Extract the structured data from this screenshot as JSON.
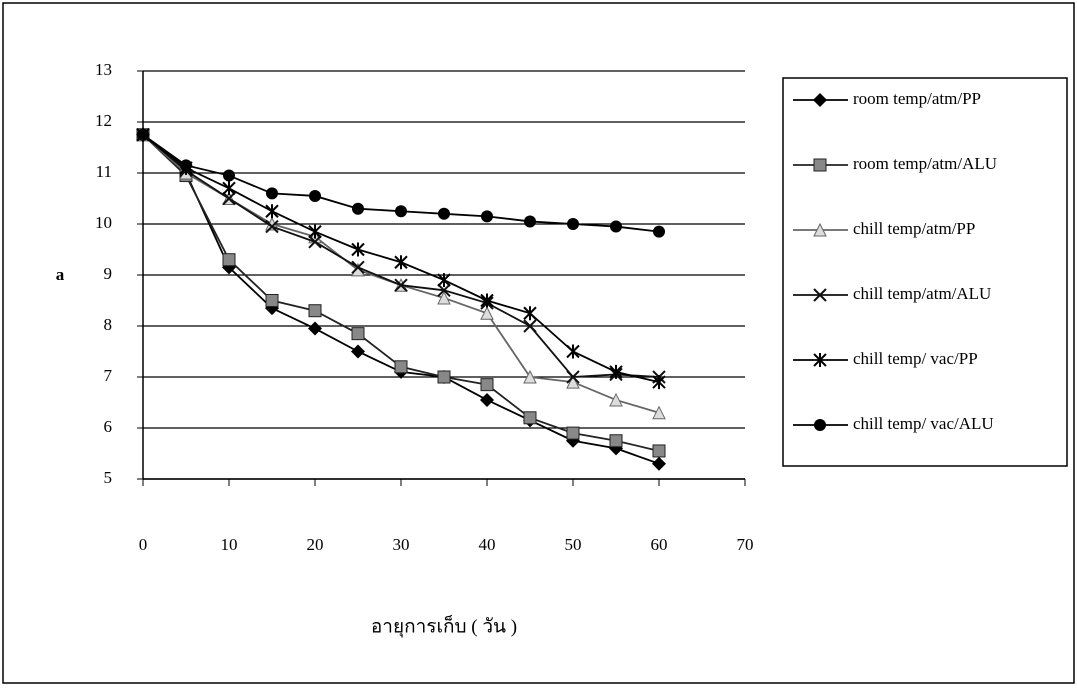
{
  "chart_data": {
    "type": "line",
    "x_label": "อายุการเก็บ ( วัน )",
    "y_label": "a",
    "x": [
      0,
      5,
      10,
      15,
      20,
      25,
      30,
      35,
      40,
      45,
      50,
      55,
      60
    ],
    "xlim": [
      0,
      70
    ],
    "xticks": [
      0,
      10,
      20,
      30,
      40,
      50,
      60,
      70
    ],
    "ylim": [
      5,
      13
    ],
    "yticks": [
      5,
      6,
      7,
      8,
      9,
      10,
      11,
      12,
      13
    ],
    "grid": true,
    "legend": "right",
    "series": [
      {
        "name": "room temp/atm/PP",
        "color": "#000000",
        "marker": "diamond",
        "values": [
          11.75,
          11.0,
          9.15,
          8.35,
          7.95,
          7.5,
          7.1,
          7.0,
          6.55,
          6.15,
          5.75,
          5.6,
          5.3
        ]
      },
      {
        "name": "room temp/atm/ALU",
        "color": "#222222",
        "marker": "square",
        "values": [
          11.75,
          10.95,
          9.3,
          8.5,
          8.3,
          7.85,
          7.2,
          7.0,
          6.85,
          6.2,
          5.9,
          5.75,
          5.55
        ]
      },
      {
        "name": "chill temp/atm/PP",
        "color": "#666666",
        "marker": "triangle",
        "values": [
          11.75,
          11.0,
          10.5,
          10.0,
          9.75,
          9.1,
          8.8,
          8.55,
          8.25,
          7.0,
          6.9,
          6.55,
          6.3
        ]
      },
      {
        "name": "chill temp/atm/ALU",
        "color": "#111111",
        "marker": "cross",
        "values": [
          11.75,
          11.05,
          10.5,
          9.95,
          9.65,
          9.15,
          8.8,
          8.7,
          8.45,
          8.0,
          7.0,
          7.05,
          7.0
        ]
      },
      {
        "name": "chill temp/ vac/PP",
        "color": "#000000",
        "marker": "asterisk",
        "values": [
          11.75,
          11.1,
          10.7,
          10.25,
          9.85,
          9.5,
          9.25,
          8.9,
          8.5,
          8.25,
          7.5,
          7.1,
          6.9
        ]
      },
      {
        "name": "chill temp/ vac/ALU",
        "color": "#000000",
        "marker": "circle",
        "values": [
          11.75,
          11.15,
          10.95,
          10.6,
          10.55,
          10.3,
          10.25,
          10.2,
          10.15,
          10.05,
          10.0,
          9.95,
          9.85
        ]
      }
    ]
  }
}
